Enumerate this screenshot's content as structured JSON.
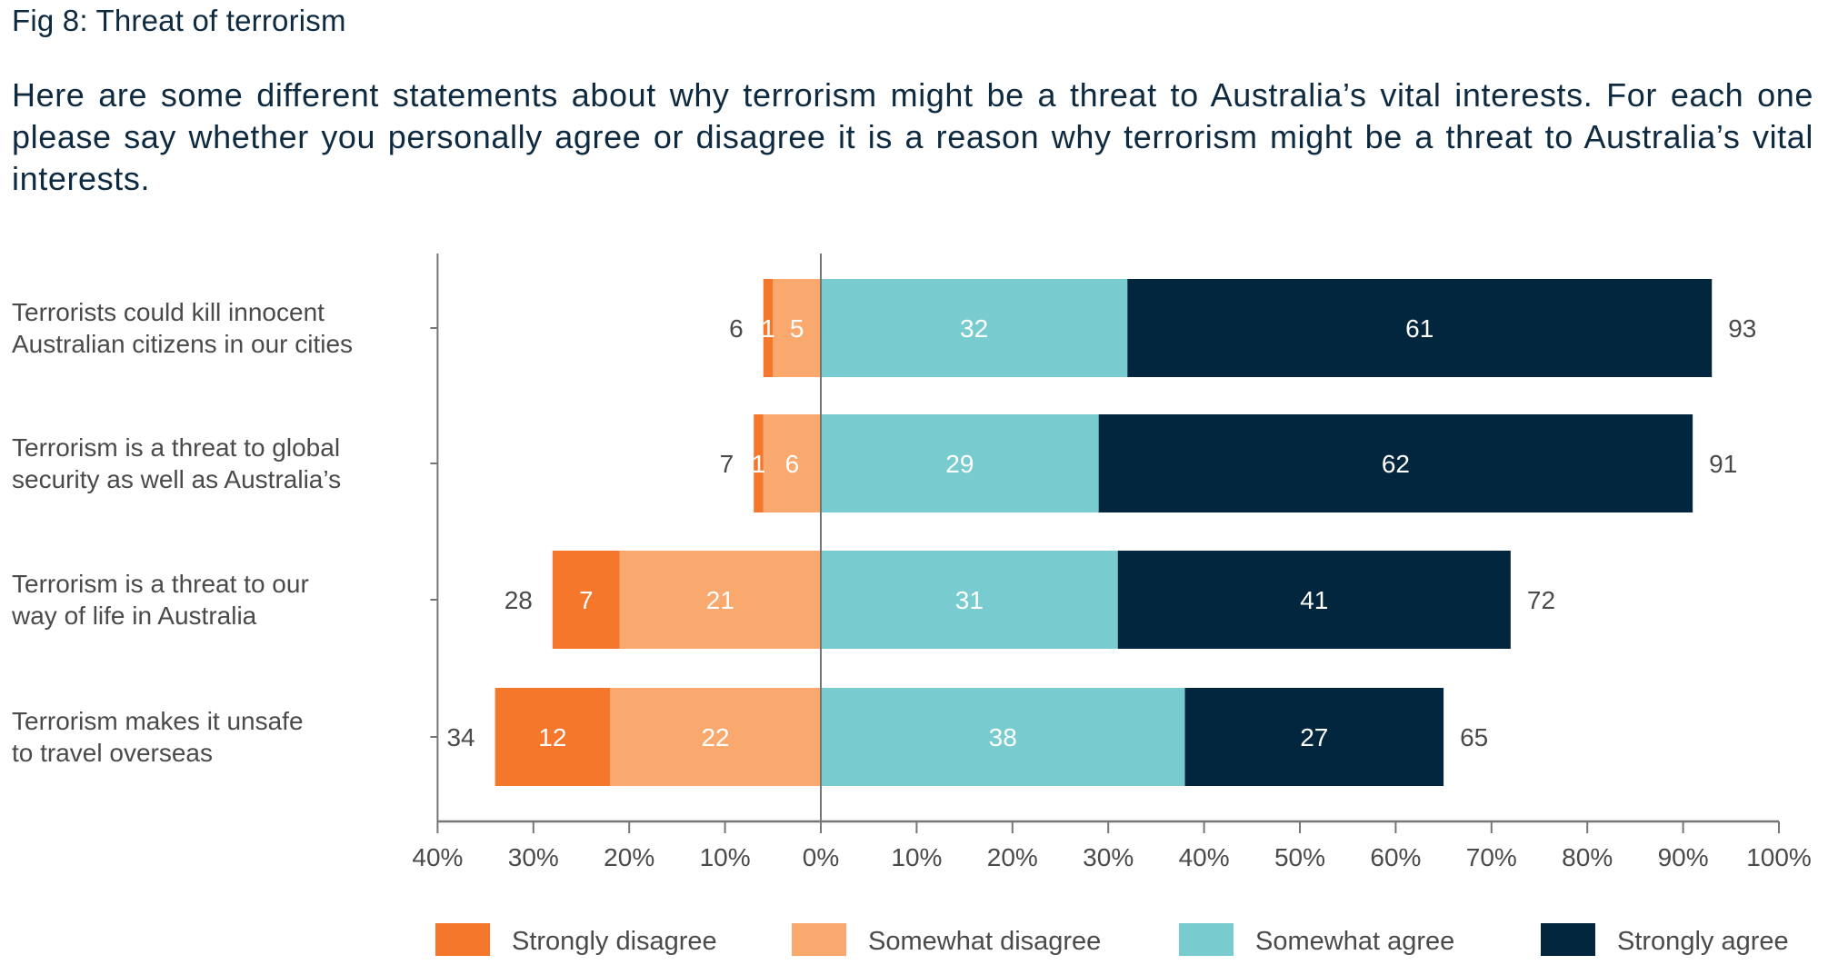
{
  "header": {
    "title": "Fig 8: Threat of terrorism",
    "subtitle": "Here are some different statements about why terrorism might be a threat to Australia’s vital interests. For each one please say whether you personally agree or disagree it is a reason why terrorism might be a threat to Australia’s vital interests."
  },
  "chart_data": {
    "type": "bar",
    "orientation": "horizontal",
    "stacked": "diverging",
    "title": "Fig 8: Threat of terrorism",
    "xlabel": "",
    "ylabel": "",
    "xlim": [
      -40,
      100
    ],
    "x_ticks": [
      -40,
      -30,
      -20,
      -10,
      0,
      10,
      20,
      30,
      40,
      50,
      60,
      70,
      80,
      90,
      100
    ],
    "x_tick_labels": [
      "40%",
      "30%",
      "20%",
      "10%",
      "0%",
      "10%",
      "20%",
      "30%",
      "40%",
      "50%",
      "60%",
      "70%",
      "80%",
      "90%",
      "100%"
    ],
    "grid": false,
    "legend_position": "bottom",
    "categories": [
      [
        "Terrorists could kill innocent",
        "Australian citizens in our cities"
      ],
      [
        "Terrorism is a threat to global",
        "security as well as Australia’s"
      ],
      [
        "Terrorism is a threat to our",
        "way of life in Australia"
      ],
      [
        "Terrorism makes it unsafe",
        "to travel overseas"
      ]
    ],
    "series": [
      {
        "name": "Strongly disagree",
        "side": "negative",
        "color": "#f4772c",
        "values": [
          1,
          1,
          7,
          12
        ]
      },
      {
        "name": "Somewhat disagree",
        "side": "negative",
        "color": "#f9a96d",
        "values": [
          5,
          6,
          21,
          22
        ]
      },
      {
        "name": "Somewhat agree",
        "side": "positive",
        "color": "#78cccf",
        "values": [
          32,
          29,
          31,
          38
        ]
      },
      {
        "name": "Strongly agree",
        "side": "positive",
        "color": "#02263e",
        "values": [
          61,
          62,
          41,
          27
        ]
      }
    ],
    "totals_disagree": [
      6,
      7,
      28,
      34
    ],
    "totals_agree": [
      93,
      91,
      72,
      65
    ]
  }
}
